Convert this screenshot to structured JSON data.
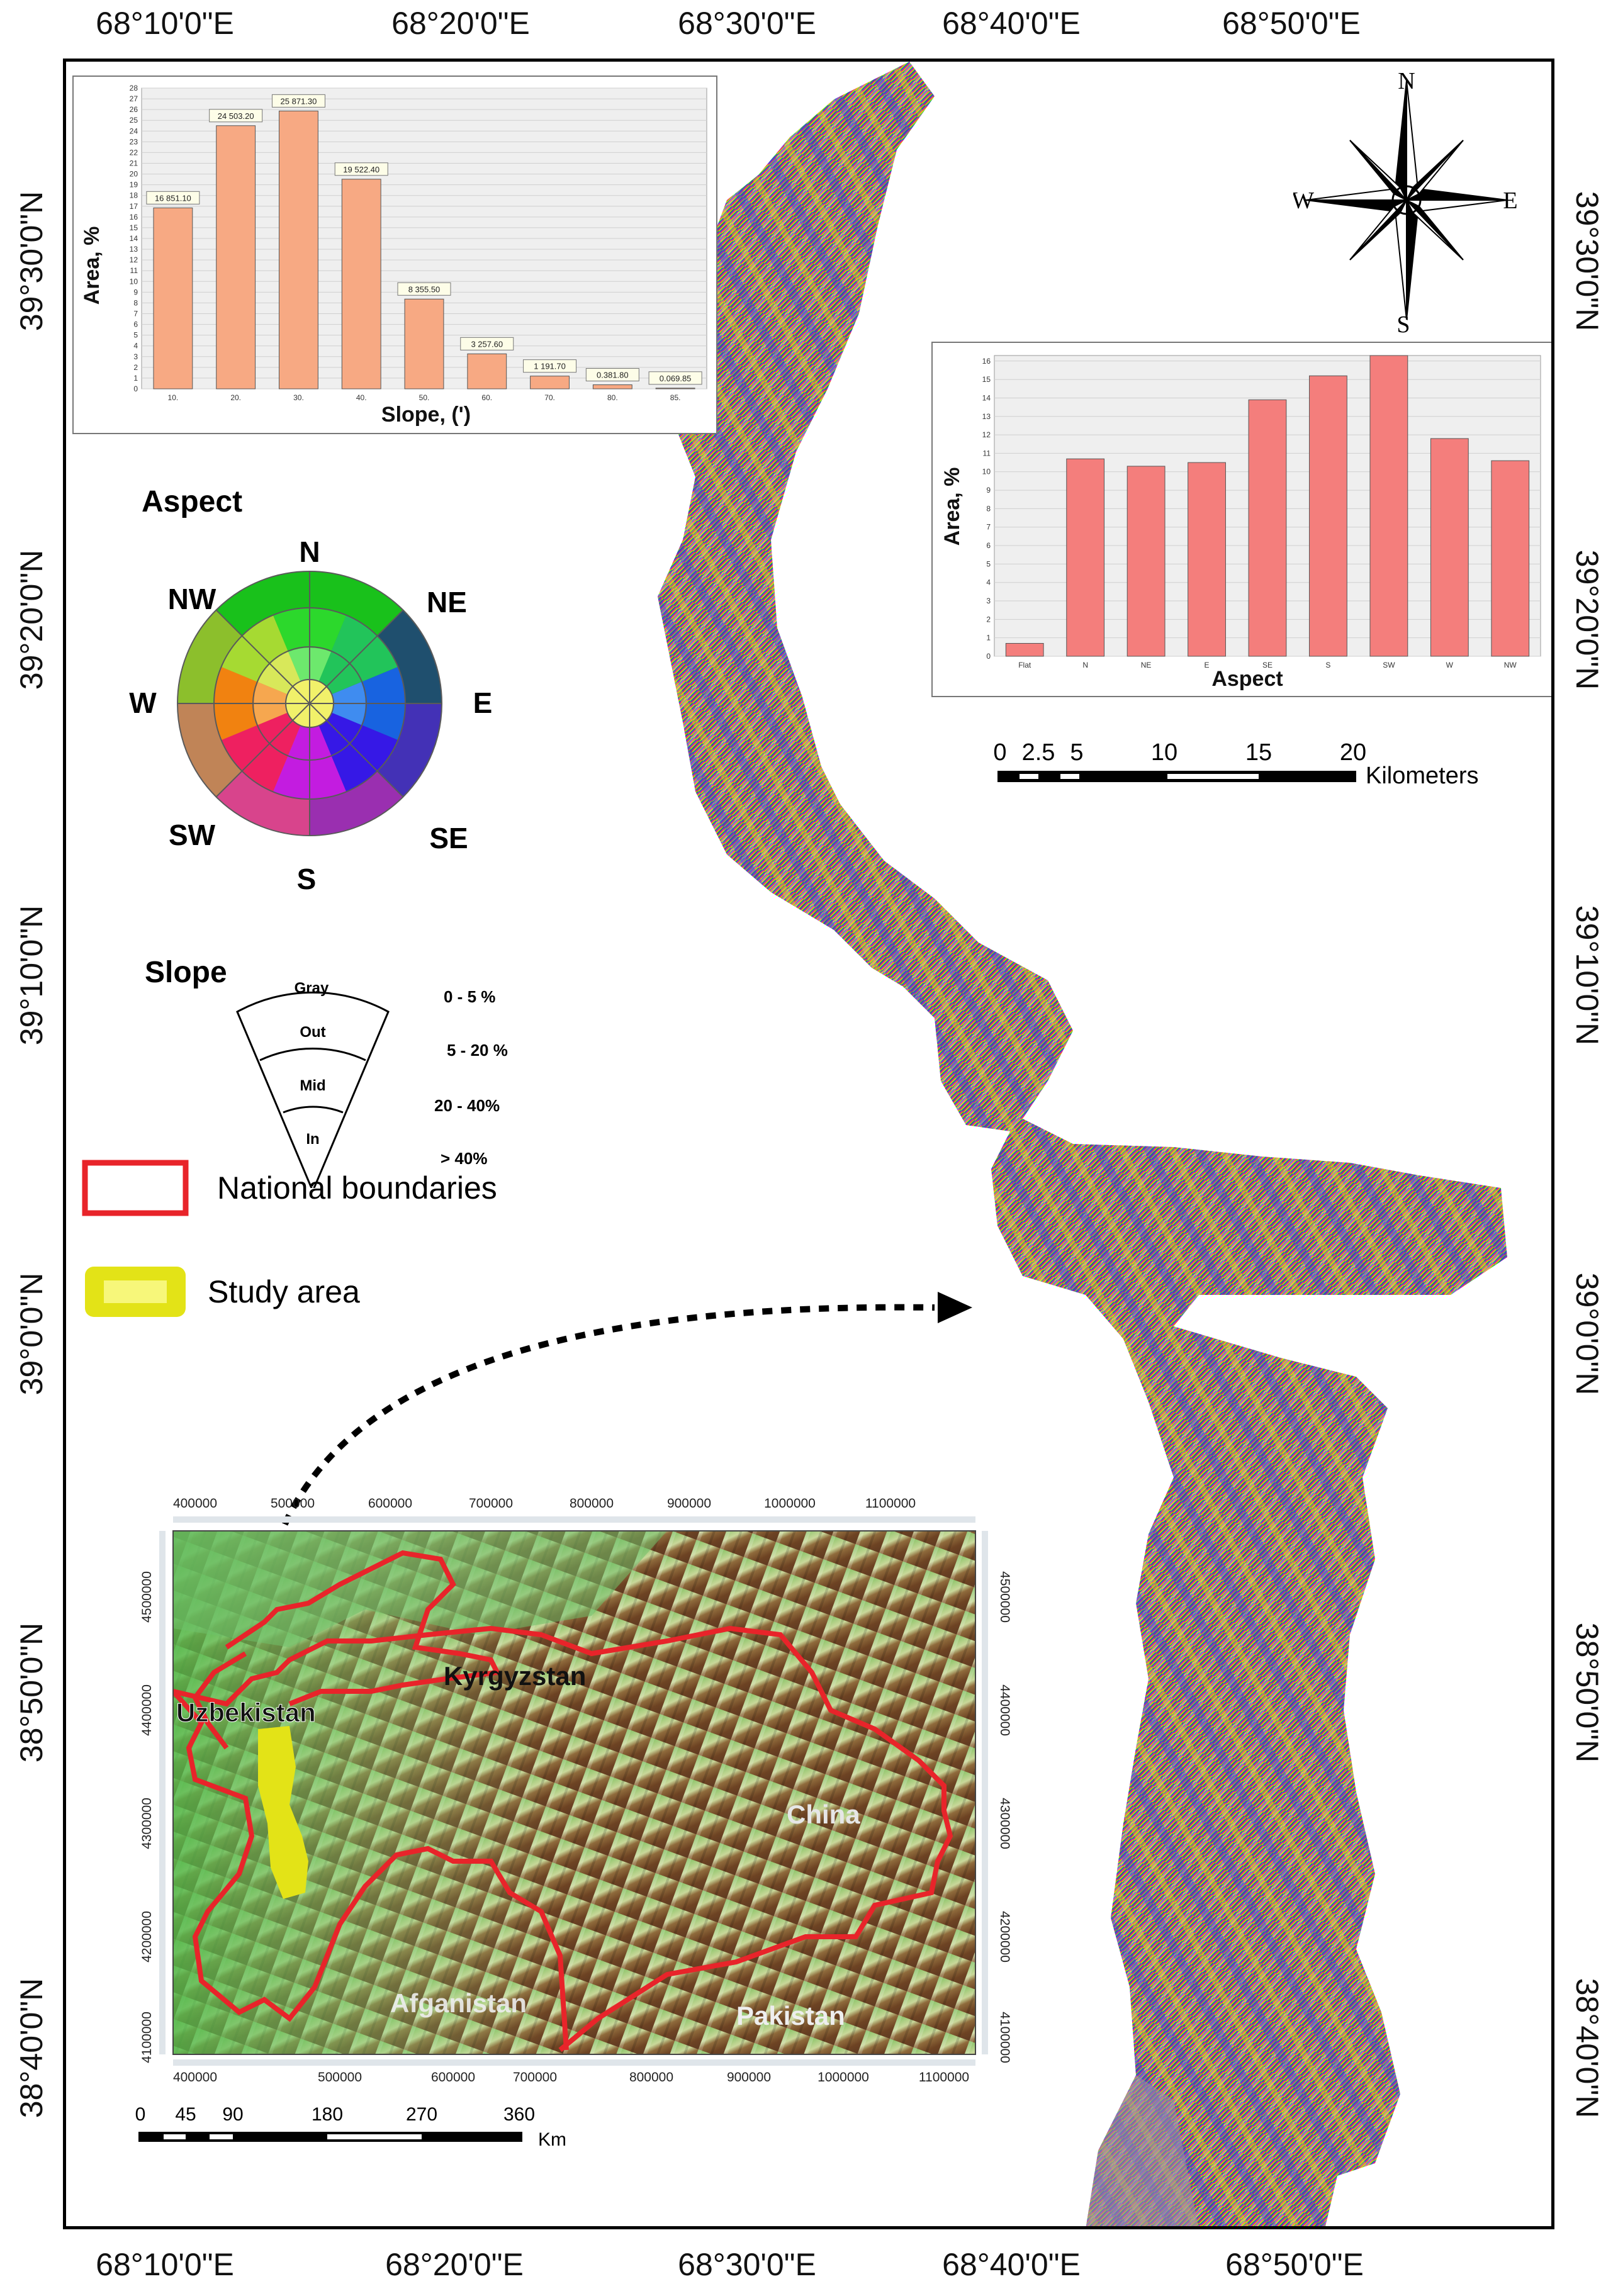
{
  "coordinates": {
    "top": [
      "68°10'0\"E",
      "68°20'0\"E",
      "68°30'0\"E",
      "68°40'0\"E",
      "68°50'0\"E"
    ],
    "bottom": [
      "68°10'0\"E",
      "68°20'0\"E",
      "68°30'0\"E",
      "68°40'0\"E",
      "68°50'0\"E"
    ],
    "left": [
      "39°30'0\"N",
      "39°20'0\"N",
      "39°10'0\"N",
      "39°0'0\"N",
      "38°50'0\"N",
      "38°40'0\"N"
    ],
    "right": [
      "39°30'0\"N",
      "39°20'0\"N",
      "39°10'0\"N",
      "39°0'0\"N",
      "38°50'0\"N",
      "38°40'0\"N"
    ]
  },
  "chart_data": [
    {
      "type": "bar",
      "xlabel": "Slope, (')",
      "ylabel": "Area, %",
      "categories": [
        "10.",
        "20.",
        "30.",
        "40.",
        "50.",
        "60.",
        "70.",
        "80.",
        "85."
      ],
      "values": [
        16.85,
        24.5,
        25.87,
        19.52,
        8.36,
        3.26,
        1.19,
        0.38,
        0.07
      ],
      "data_labels": [
        "16 851.10",
        "24 503.20",
        "25 871.30",
        "19 522.40",
        "8 355.50",
        "3 257.60",
        "1 191.70",
        "0.381.80",
        "0.069.85"
      ],
      "yticks": [
        "0",
        "1",
        "2",
        "3",
        "4",
        "5",
        "6",
        "7",
        "8",
        "9",
        "10",
        "11",
        "12",
        "13",
        "14",
        "15",
        "16",
        "17",
        "18",
        "19",
        "20",
        "21",
        "22",
        "23",
        "24",
        "25",
        "26",
        "27",
        "28"
      ],
      "ylim": [
        0,
        28
      ],
      "grid": true,
      "bar_color": "#f7a983"
    },
    {
      "type": "bar",
      "xlabel": "Aspect",
      "ylabel": "Area, %",
      "categories": [
        "Flat",
        "N",
        "NE",
        "E",
        "SE",
        "S",
        "SW",
        "W",
        "NW"
      ],
      "values": [
        0.7,
        10.7,
        10.3,
        10.5,
        13.9,
        15.2,
        16.3,
        11.8,
        10.6
      ],
      "yticks": [
        "0",
        "1",
        "2",
        "3",
        "4",
        "5",
        "6",
        "7",
        "8",
        "9",
        "10",
        "11",
        "12",
        "13",
        "14",
        "15",
        "16"
      ],
      "ylim": [
        0,
        16.3
      ],
      "grid": true,
      "bar_color": "#f47e7c"
    }
  ],
  "legend": {
    "aspect_title": "Aspect",
    "directions": [
      "N",
      "NE",
      "E",
      "SE",
      "S",
      "SW",
      "W",
      "NW"
    ],
    "slope_title": "Slope",
    "slope_zones": [
      "Gray",
      "Out",
      "Mid",
      "In"
    ],
    "slope_ranges": [
      "0 - 5 %",
      "5 - 20 %",
      "20 - 40%",
      "> 40%"
    ],
    "national_boundaries": "National boundaries",
    "study_area": "Study area",
    "boundary_color": "#e8242a",
    "study_color": "#e3e317"
  },
  "compass": {
    "n": "N",
    "s": "S",
    "e": "E",
    "w": "W"
  },
  "scale_bar": {
    "ticks": [
      "0",
      "2.5",
      "5",
      "10",
      "15",
      "20"
    ],
    "unit": "Kilometers"
  },
  "inset": {
    "x_ticks_top": [
      "400000",
      "500000",
      "600000",
      "700000",
      "800000",
      "900000",
      "1000000",
      "1100000"
    ],
    "x_ticks_bottom": [
      "400000",
      "500000",
      "600000",
      "700000",
      "800000",
      "900000",
      "1000000",
      "1100000"
    ],
    "y_ticks": [
      "4500000",
      "4400000",
      "4300000",
      "4200000",
      "4100000"
    ],
    "countries": [
      "Uzbekistan",
      "Kyrgyzstan",
      "China",
      "Afganistan",
      "Pakistan"
    ],
    "scale_ticks": [
      "0",
      "45",
      "90",
      "180",
      "270",
      "360"
    ],
    "scale_unit": "Km"
  }
}
